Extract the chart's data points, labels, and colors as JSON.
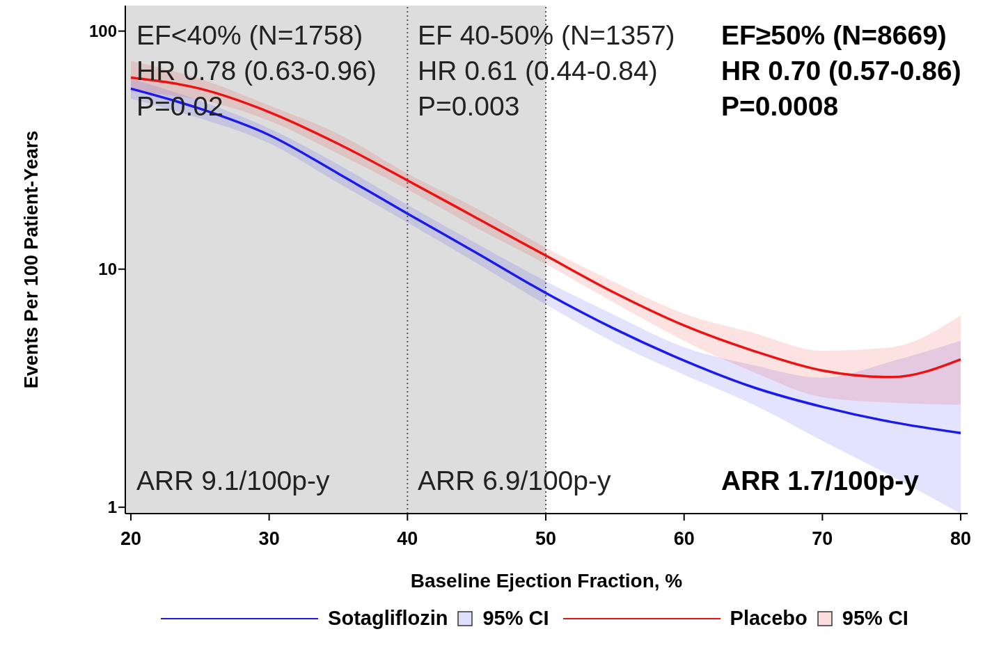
{
  "chart_data": {
    "type": "line",
    "xlabel": "Baseline Ejection Fraction, %",
    "ylabel": "Events Per 100 Patient-Years",
    "xlim": [
      19.6,
      80.5
    ],
    "xticks": [
      20,
      30,
      40,
      50,
      60,
      70,
      80
    ],
    "ylim": [
      0.94,
      128
    ],
    "yticks": [
      1,
      10,
      100
    ],
    "log": "y",
    "grid": false,
    "legend": "bottom",
    "marker": "none",
    "line_style": "solid",
    "series": [
      {
        "name": "Sotagliflozin",
        "color": "#1a1aee",
        "x": [
          20,
          25,
          30,
          35,
          40,
          45,
          50,
          55,
          60,
          65,
          70,
          75,
          80
        ],
        "values": [
          57.3,
          47.2,
          36.6,
          25.2,
          17.1,
          11.7,
          7.94,
          5.6,
          4.13,
          3.19,
          2.64,
          2.28,
          2.05
        ],
        "lower": [
          52,
          43,
          33.8,
          23,
          15.7,
          10.6,
          7.1,
          4.9,
          3.6,
          2.7,
          1.9,
          1.35,
          0.94
        ],
        "upper": [
          63,
          51,
          39,
          27.5,
          18.6,
          12.8,
          8.9,
          6.4,
          4.7,
          3.95,
          3.5,
          4.1,
          5.0
        ]
      },
      {
        "name": "Placebo",
        "color": "#ee1111",
        "x": [
          20,
          25,
          30,
          35,
          40,
          45,
          50,
          55,
          60,
          65,
          70,
          75,
          80
        ],
        "values": [
          63.8,
          57.3,
          45.7,
          33.6,
          23.6,
          16.4,
          11.4,
          7.94,
          5.8,
          4.54,
          3.75,
          3.52,
          4.18
        ],
        "lower": [
          55.5,
          51.5,
          42,
          30.5,
          21.6,
          14.9,
          10.5,
          7.2,
          5.0,
          3.7,
          2.9,
          2.75,
          2.69
        ],
        "upper": [
          75,
          63,
          48.7,
          37,
          25.2,
          18,
          12.3,
          8.8,
          6.5,
          5.4,
          4.54,
          4.7,
          6.4
        ]
      }
    ],
    "bands": [
      {
        "axis": "x",
        "from": 19.6,
        "to": 50,
        "color": "#dddddd"
      }
    ],
    "ref_lines": [
      {
        "axis": "x",
        "value": 40,
        "line_style": "dotted",
        "color": "#555555"
      },
      {
        "axis": "x",
        "value": 50,
        "line_style": "dotted",
        "color": "#555555"
      }
    ],
    "annotations": [
      "EF<40% (N=1758)",
      "HR 0.78 (0.63-0.96)",
      "P=0.02",
      "ARR 9.1/100p-y",
      "EF 40-50% (N=1357)",
      "HR 0.61 (0.44-0.84)",
      "P=0.003",
      "ARR 6.9/100p-y",
      "EF≥50% (N=8669)",
      "HR 0.70 (0.57-0.86)",
      "P=0.0008",
      "ARR 1.7/100p-y",
      "95% CI",
      "95% CI"
    ]
  }
}
